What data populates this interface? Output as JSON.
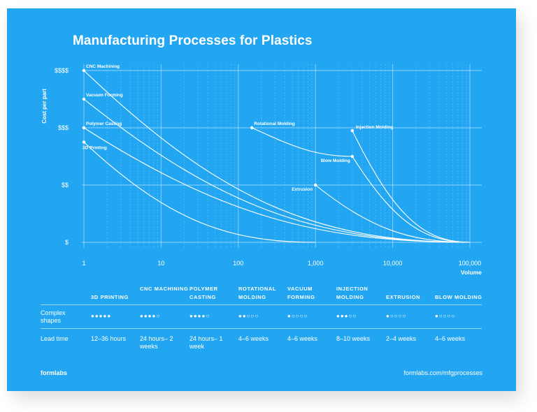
{
  "chart_data": {
    "type": "line",
    "title": "Manufacturing Processes for Plastics",
    "xlabel": "Volume",
    "ylabel": "Cost per part",
    "x_scale": "log",
    "xlim": [
      1,
      100000
    ],
    "x_ticks": [
      1,
      10,
      100,
      1000,
      10000,
      100000
    ],
    "x_tick_labels": [
      "1",
      "10",
      "100",
      "1,000",
      "10,000",
      "100,000"
    ],
    "y_tick_labels": [
      "$",
      "$$",
      "$$$",
      "$$$$"
    ],
    "ylim": [
      1,
      4
    ],
    "grid": true,
    "series": [
      {
        "name": "CNC Machining",
        "x": [
          1,
          100000
        ],
        "y": [
          4.0,
          1.0
        ]
      },
      {
        "name": "Vacuum Forming",
        "x": [
          1,
          100000
        ],
        "y": [
          3.5,
          1.0
        ]
      },
      {
        "name": "Polymer Casting",
        "x": [
          1,
          100000
        ],
        "y": [
          3.0,
          1.0
        ]
      },
      {
        "name": "3D Printing",
        "x": [
          1,
          1000
        ],
        "y": [
          2.75,
          1.0
        ]
      },
      {
        "name": "Rotational Molding",
        "x": [
          150,
          3000
        ],
        "y": [
          3.0,
          2.5
        ]
      },
      {
        "name": "Blow Molding",
        "x": [
          3000,
          100000
        ],
        "y": [
          2.5,
          1.0
        ]
      },
      {
        "name": "Injection Molding",
        "x": [
          3000,
          100000
        ],
        "y": [
          2.95,
          1.0
        ]
      },
      {
        "name": "Extrusion",
        "x": [
          1000,
          100000
        ],
        "y": [
          2.0,
          1.0
        ]
      }
    ]
  },
  "table": {
    "headers": [
      "3D Printing",
      "CNC Machining",
      "Polymer Casting",
      "Rotational Molding",
      "Vacuum Forming",
      "Injection Molding",
      "Extrusion",
      "Blow Molding"
    ],
    "rows": [
      {
        "label": "Complex shapes",
        "cells": [
          "●●●●●",
          "●●●●○",
          "●●●●○",
          "●●○○○",
          "●○○○○",
          "●●●○○",
          "●○○○○",
          "●○○○○"
        ]
      },
      {
        "label": "Lead time",
        "cells": [
          "12–36 hours",
          "24 hours– 2 weeks",
          "24 hours– 1 week",
          "4–6 weeks",
          "4–6 weeks",
          "8–10 weeks",
          "2–4 weeks",
          "4–6 weeks"
        ]
      }
    ]
  },
  "footer": {
    "brand": "formlabs",
    "url": "formlabs.com/mfgprocesses"
  }
}
